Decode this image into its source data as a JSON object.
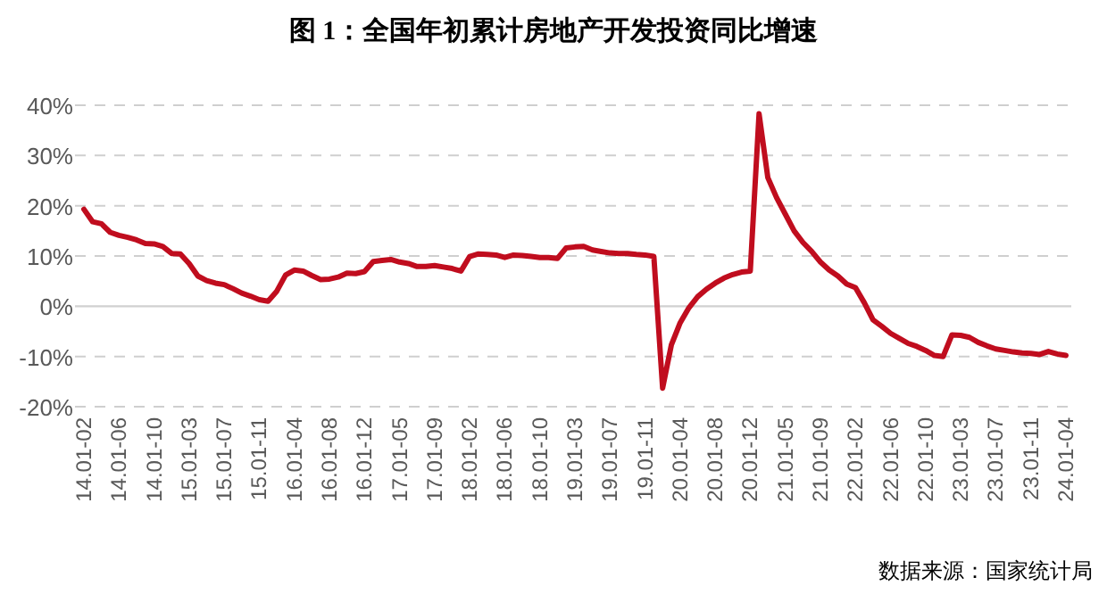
{
  "chart_data": {
    "type": "line",
    "title": "图 1：全国年初累计房地产开发投资同比增速",
    "categories": [
      "14.01-02",
      null,
      null,
      null,
      "14.01-06",
      null,
      null,
      null,
      "14.01-10",
      null,
      null,
      null,
      "15.01-03",
      null,
      null,
      null,
      "15.01-07",
      null,
      null,
      null,
      "15.01-11",
      null,
      null,
      null,
      "16.01-04",
      null,
      null,
      null,
      "16.01-08",
      null,
      null,
      null,
      "16.01-12",
      null,
      null,
      null,
      "17.01-05",
      null,
      null,
      null,
      "17.01-09",
      null,
      null,
      null,
      "18.01-02",
      null,
      null,
      null,
      "18.01-06",
      null,
      null,
      null,
      "18.01-10",
      null,
      null,
      null,
      "19.01-03",
      null,
      null,
      null,
      "19.01-07",
      null,
      null,
      null,
      "19.01-11",
      null,
      null,
      null,
      "20.01-04",
      null,
      null,
      null,
      "20.01-08",
      null,
      null,
      null,
      "20.01-12",
      null,
      null,
      null,
      "21.01-05",
      null,
      null,
      null,
      "21.01-09",
      null,
      null,
      null,
      "22.01-02",
      null,
      null,
      null,
      "22.01-06",
      null,
      null,
      null,
      "22.01-10",
      null,
      null,
      null,
      "23.01-03",
      null,
      null,
      null,
      "23.01-07",
      null,
      null,
      null,
      "23.01-11",
      null,
      null,
      null,
      "24.01-04"
    ],
    "series": [
      {
        "color": "#c00d1e",
        "values": [
          19.3,
          16.8,
          16.4,
          14.7,
          14.1,
          13.7,
          13.2,
          12.5,
          12.4,
          11.9,
          10.5,
          10.4,
          8.5,
          6.0,
          5.1,
          4.6,
          4.3,
          3.5,
          2.6,
          2.0,
          1.3,
          1.0,
          3.0,
          6.2,
          7.2,
          7.0,
          6.1,
          5.3,
          5.4,
          5.8,
          6.6,
          6.5,
          6.9,
          8.9,
          9.1,
          9.3,
          8.8,
          8.5,
          7.9,
          7.9,
          8.1,
          7.8,
          7.5,
          7.0,
          9.9,
          10.4,
          10.3,
          10.2,
          9.7,
          10.2,
          10.1,
          9.9,
          9.7,
          9.7,
          9.5,
          11.6,
          11.8,
          11.9,
          11.2,
          10.9,
          10.6,
          10.5,
          10.5,
          10.3,
          10.2,
          9.9,
          -16.3,
          -7.7,
          -3.3,
          -0.3,
          1.9,
          3.4,
          4.6,
          5.6,
          6.3,
          6.8,
          7.0,
          38.3,
          25.6,
          21.6,
          18.3,
          15.0,
          12.7,
          10.9,
          8.8,
          7.2,
          6.0,
          4.4,
          3.7,
          0.7,
          -2.7,
          -4.0,
          -5.4,
          -6.4,
          -7.4,
          -8.0,
          -8.8,
          -9.8,
          -10.0,
          -5.7,
          -5.8,
          -6.2,
          -7.2,
          -7.9,
          -8.5,
          -8.8,
          -9.1,
          -9.3,
          -9.4,
          -9.6,
          -9.0,
          -9.5,
          -9.8
        ]
      }
    ],
    "ylim": [
      -20,
      40
    ],
    "yticks": [
      {
        "value": -20,
        "label": "-20%"
      },
      {
        "value": -10,
        "label": "-10%"
      },
      {
        "value": 0,
        "label": "0%"
      },
      {
        "value": 10,
        "label": "10%"
      },
      {
        "value": 20,
        "label": "20%"
      },
      {
        "value": 30,
        "label": "30%"
      },
      {
        "value": 40,
        "label": "40%"
      }
    ],
    "grid": "y",
    "marker": "none",
    "line_style": "solid",
    "annotations": [
      "数据来源：国家统计局"
    ]
  }
}
